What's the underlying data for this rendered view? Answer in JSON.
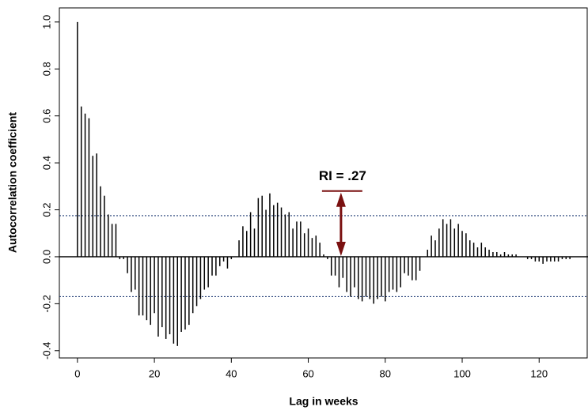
{
  "chart_data": {
    "type": "bar",
    "x_label": "Lag in weeks",
    "y_label": "Autocorrelation coefficient",
    "xlim": [
      -4.7,
      132.7
    ],
    "xticks": [
      0,
      20,
      40,
      60,
      80,
      100,
      120
    ],
    "ylim": [
      -0.431,
      1.06
    ],
    "yticks": [
      {
        "value": -0.4,
        "label": "-0.4"
      },
      {
        "value": -0.2,
        "label": "-0.2"
      },
      {
        "value": 0,
        "label": "0.0"
      },
      {
        "value": 0.2,
        "label": "0.2"
      },
      {
        "value": 0.4,
        "label": "0.4"
      },
      {
        "value": 0.6,
        "label": "0.6"
      },
      {
        "value": 0.8,
        "label": "0.8"
      },
      {
        "value": 1,
        "label": "1.0"
      }
    ],
    "color": "#000000",
    "conf_limits": [
      0.175,
      -0.17
    ],
    "conf_color": "#1f3b73",
    "annotation": {
      "label": "RI = .27",
      "x": 68.5,
      "value": 0.28,
      "color": "#7a1010"
    },
    "x": [
      0,
      1,
      2,
      3,
      4,
      5,
      6,
      7,
      8,
      9,
      10,
      11,
      12,
      13,
      14,
      15,
      16,
      17,
      18,
      19,
      20,
      21,
      22,
      23,
      24,
      25,
      26,
      27,
      28,
      29,
      30,
      31,
      32,
      33,
      34,
      35,
      36,
      37,
      38,
      39,
      40,
      41,
      42,
      43,
      44,
      45,
      46,
      47,
      48,
      49,
      50,
      51,
      52,
      53,
      54,
      55,
      56,
      57,
      58,
      59,
      60,
      61,
      62,
      63,
      64,
      65,
      66,
      67,
      68,
      69,
      70,
      71,
      72,
      73,
      74,
      75,
      76,
      77,
      78,
      79,
      80,
      81,
      82,
      83,
      84,
      85,
      86,
      87,
      88,
      89,
      90,
      91,
      92,
      93,
      94,
      95,
      96,
      97,
      98,
      99,
      100,
      101,
      102,
      103,
      104,
      105,
      106,
      107,
      108,
      109,
      110,
      111,
      112,
      113,
      114,
      115,
      116,
      117,
      118,
      119,
      120,
      121,
      122,
      123,
      124,
      125,
      126,
      127,
      128
    ],
    "values": [
      1.0,
      0.64,
      0.61,
      0.59,
      0.43,
      0.44,
      0.3,
      0.26,
      0.18,
      0.14,
      0.14,
      -0.01,
      -0.01,
      -0.07,
      -0.15,
      -0.14,
      -0.25,
      -0.25,
      -0.27,
      -0.29,
      -0.24,
      -0.34,
      -0.3,
      -0.35,
      -0.33,
      -0.37,
      -0.38,
      -0.32,
      -0.31,
      -0.29,
      -0.24,
      -0.21,
      -0.18,
      -0.14,
      -0.13,
      -0.08,
      -0.08,
      -0.04,
      -0.02,
      -0.05,
      -0.01,
      0.0,
      0.07,
      0.13,
      0.11,
      0.19,
      0.12,
      0.25,
      0.26,
      0.2,
      0.27,
      0.22,
      0.23,
      0.21,
      0.18,
      0.19,
      0.12,
      0.15,
      0.15,
      0.1,
      0.12,
      0.08,
      0.09,
      0.06,
      0.01,
      -0.01,
      -0.08,
      -0.08,
      -0.13,
      -0.09,
      -0.15,
      -0.17,
      -0.13,
      -0.18,
      -0.19,
      -0.17,
      -0.18,
      -0.2,
      -0.18,
      -0.17,
      -0.19,
      -0.15,
      -0.14,
      -0.15,
      -0.13,
      -0.07,
      -0.08,
      -0.1,
      -0.1,
      -0.06,
      0.0,
      0.03,
      0.09,
      0.07,
      0.12,
      0.16,
      0.14,
      0.16,
      0.12,
      0.14,
      0.11,
      0.1,
      0.07,
      0.06,
      0.04,
      0.06,
      0.04,
      0.03,
      0.02,
      0.02,
      0.01,
      0.02,
      0.01,
      0.01,
      0.01,
      0.0,
      0.0,
      -0.01,
      -0.01,
      -0.02,
      -0.02,
      -0.03,
      -0.02,
      -0.02,
      -0.02,
      -0.02,
      -0.01,
      -0.01,
      -0.01
    ]
  }
}
